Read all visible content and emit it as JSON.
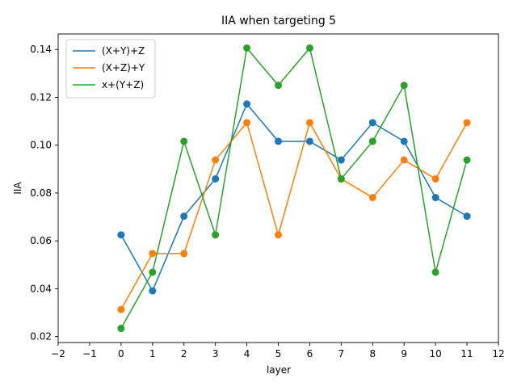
{
  "chart_data": {
    "type": "line",
    "title": "IIA when targeting 5",
    "xlabel": "layer",
    "ylabel": "IIA",
    "xlim": [
      -2,
      12
    ],
    "ylim": [
      0.0175,
      0.1465
    ],
    "xticks": [
      -2,
      -1,
      0,
      1,
      2,
      3,
      4,
      5,
      6,
      7,
      8,
      9,
      10,
      11,
      12
    ],
    "xtick_labels": [
      "−2",
      "−1",
      "0",
      "1",
      "2",
      "3",
      "4",
      "5",
      "6",
      "7",
      "8",
      "9",
      "10",
      "11",
      "12"
    ],
    "yticks": [
      0.02,
      0.04,
      0.06,
      0.08,
      0.1,
      0.12,
      0.14
    ],
    "ytick_labels": [
      "0.02",
      "0.04",
      "0.06",
      "0.08",
      "0.10",
      "0.12",
      "0.14"
    ],
    "grid": false,
    "legend_position": "top-left",
    "x": [
      0,
      1,
      2,
      3,
      4,
      5,
      6,
      7,
      8,
      9,
      10,
      11
    ],
    "series": [
      {
        "name": "(X+Y)+Z",
        "color": "#1f77b4",
        "values": [
          0.0625,
          0.0391,
          0.0703,
          0.0859,
          0.1172,
          0.1016,
          0.1016,
          0.0938,
          0.1094,
          0.1016,
          0.0781,
          0.0703
        ]
      },
      {
        "name": "(X+Z)+Y",
        "color": "#ff7f0e",
        "values": [
          0.0313,
          0.0547,
          0.0547,
          0.0938,
          0.1094,
          0.0625,
          0.1094,
          0.0859,
          0.0781,
          0.0938,
          0.0859,
          0.1094
        ]
      },
      {
        "name": "x+(Y+Z)",
        "color": "#2ca02c",
        "values": [
          0.0234,
          0.0469,
          0.1016,
          0.0625,
          0.1406,
          0.125,
          0.1406,
          0.0859,
          0.1016,
          0.125,
          0.0469,
          0.0938
        ]
      }
    ]
  }
}
